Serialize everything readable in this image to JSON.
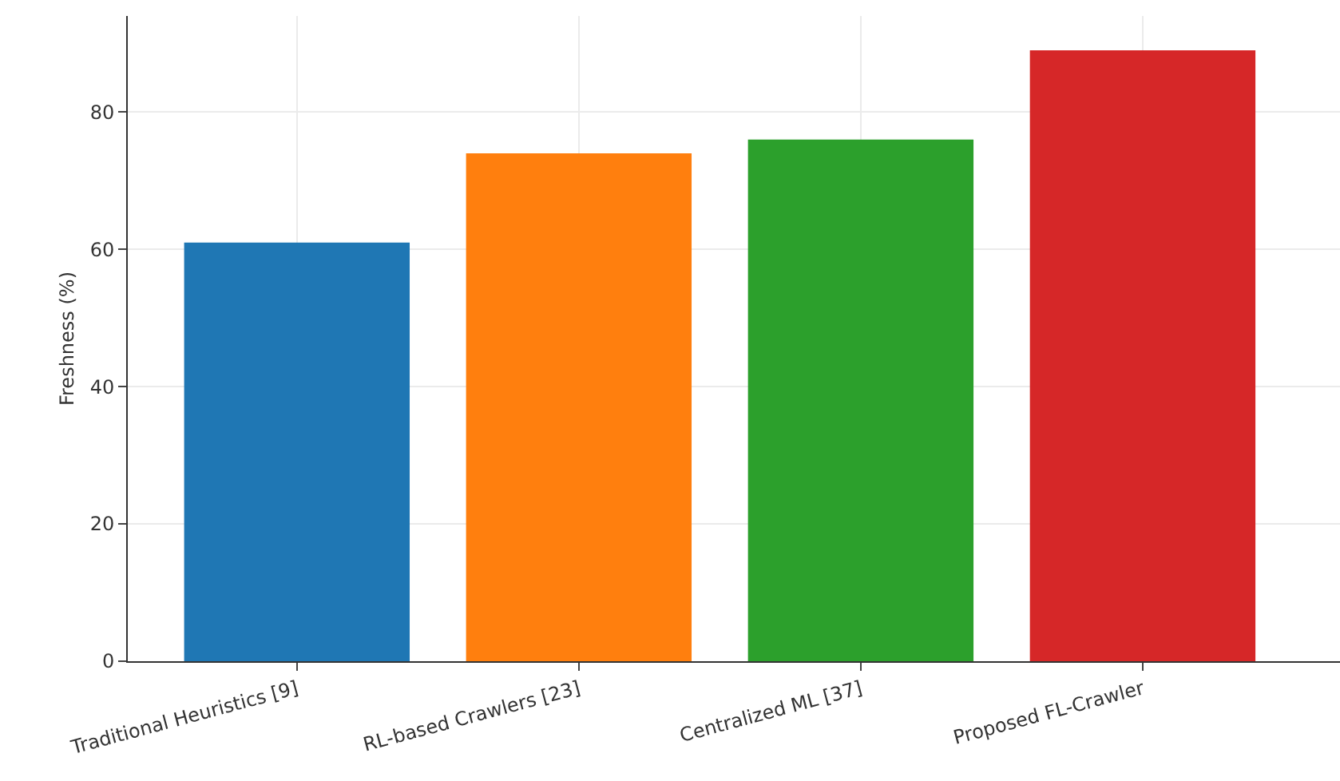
{
  "chart_data": {
    "type": "bar",
    "ylabel": "Freshness (%)",
    "categories": [
      "Traditional Heuristics [9]",
      "RL-based Crawlers [23]",
      "Centralized ML [37]",
      "Proposed FL-Crawler"
    ],
    "values": [
      61,
      74,
      76,
      89
    ],
    "colors": [
      "#1f77b4",
      "#ff7f0e",
      "#2ca02c",
      "#d62728"
    ],
    "ylim": [
      0,
      94
    ],
    "yticks": [
      0,
      20,
      40,
      60,
      80
    ],
    "grid": true
  }
}
